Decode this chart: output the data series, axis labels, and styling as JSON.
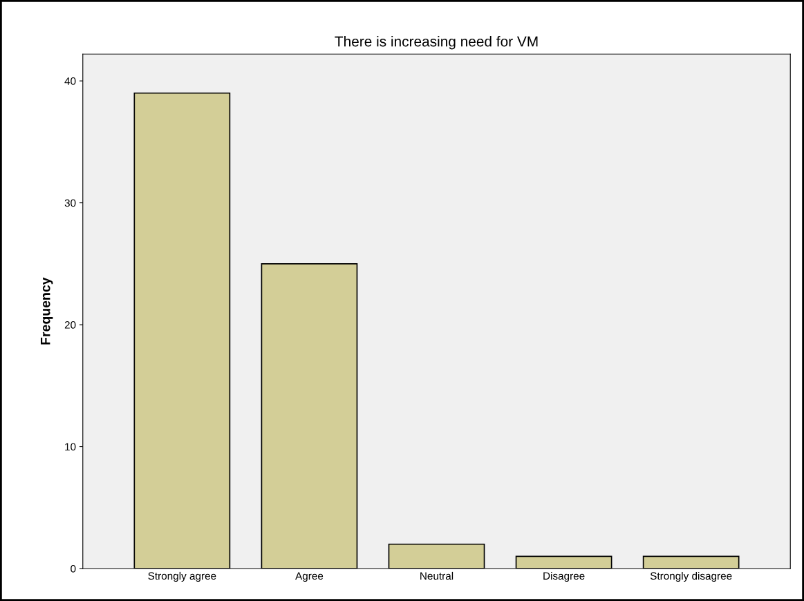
{
  "chart_data": {
    "type": "bar",
    "title": "There is increasing need for VM",
    "ylabel": "Frequency",
    "categories": [
      "Strongly agree",
      "Agree",
      "Neutral",
      "Disagree",
      "Strongly disagree"
    ],
    "values": [
      39,
      25,
      2,
      1,
      1
    ],
    "color": "#d3ce97",
    "ylim": [
      0,
      42.2
    ],
    "yticks": [
      0,
      10,
      20,
      30,
      40
    ],
    "grid": false
  }
}
